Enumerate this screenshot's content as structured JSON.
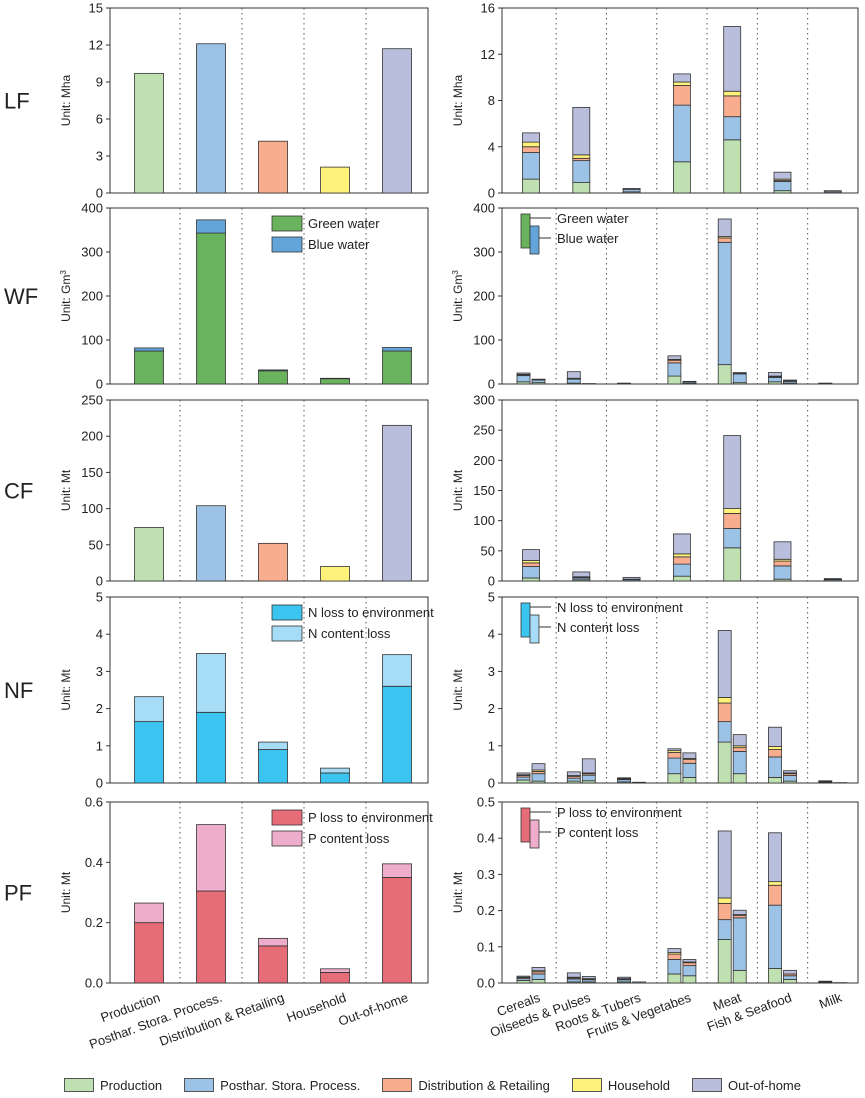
{
  "colors": {
    "stages": [
      "#bfe0b0",
      "#9cc3e6",
      "#f8ad8e",
      "#fff27a",
      "#b8bedb"
    ],
    "green_water": "#6ab35e",
    "blue_water": "#63a5d8",
    "n_env": "#3cc4f0",
    "n_content": "#a6dcf5",
    "p_env": "#e66d78",
    "p_content": "#eeadcb"
  },
  "legend": {
    "items": [
      {
        "label": "Production",
        "color": "#bfe0b0"
      },
      {
        "label": "Posthar. Stora. Process.",
        "color": "#9cc3e6"
      },
      {
        "label": "Distribution & Retailing",
        "color": "#f8ad8e"
      },
      {
        "label": "Household",
        "color": "#fff27a"
      },
      {
        "label": "Out-of-home",
        "color": "#b8bedb"
      }
    ]
  },
  "chart_data": [
    {
      "panel": "LF-stage",
      "row_label": "LF",
      "type": "bar",
      "ylabel": "Unit: Mha",
      "ylim": [
        0,
        15
      ],
      "yticks": [
        0,
        3,
        6,
        9,
        12,
        15
      ],
      "categories": [
        "Production",
        "Posthar. Stora. Process.",
        "Distribution & Retailing",
        "Household",
        "Out-of-home"
      ],
      "values": [
        9.7,
        12.1,
        4.2,
        2.1,
        11.7
      ]
    },
    {
      "panel": "LF-food",
      "type": "bar",
      "ylabel": "Unit: Mha",
      "ylim": [
        0,
        16
      ],
      "yticks": [
        0,
        4,
        8,
        12,
        16
      ],
      "categories": [
        "Cereals",
        "Oilseeds & Pulses",
        "Roots & Tubers",
        "Fruits & Vegetabes",
        "Meat",
        "Fish & Seafood",
        "Milk"
      ],
      "stacks": [
        [
          1.2,
          2.3,
          0.5,
          0.4,
          0.8
        ],
        [
          0.9,
          1.9,
          0.2,
          0.3,
          4.1
        ],
        [
          0.1,
          0.2,
          0.0,
          0.0,
          0.1
        ],
        [
          2.7,
          4.9,
          1.7,
          0.3,
          0.7
        ],
        [
          4.6,
          2.0,
          1.8,
          0.4,
          5.6
        ],
        [
          0.2,
          0.8,
          0.1,
          0.1,
          0.6
        ],
        [
          0.0,
          0.1,
          0.0,
          0.0,
          0.1
        ]
      ]
    },
    {
      "panel": "WF-stage",
      "row_label": "WF",
      "type": "bar",
      "ylabel": "Unit: Gm³",
      "ylim": [
        0,
        400
      ],
      "yticks": [
        0,
        100,
        200,
        300,
        400
      ],
      "categories": [
        "Production",
        "Posthar. Stora. Process.",
        "Distribution & Retailing",
        "Household",
        "Out-of-home"
      ],
      "series": [
        {
          "name": "Green water",
          "values": [
            75,
            343,
            30,
            12,
            75
          ]
        },
        {
          "name": "Blue water",
          "values": [
            7,
            30,
            2,
            1,
            8
          ]
        }
      ]
    },
    {
      "panel": "WF-food",
      "type": "bar",
      "ylabel": "Unit: Gm³",
      "ylim": [
        0,
        400
      ],
      "yticks": [
        0,
        100,
        200,
        300,
        400
      ],
      "categories": [
        "Cereals",
        "Oilseeds & Pulses",
        "Roots & Tubers",
        "Fruits & Vegetabes",
        "Meat",
        "Fish & Seafood",
        "Milk"
      ],
      "legend_labels": [
        "Green water",
        "Blue water"
      ],
      "pairs": [
        [
          [
            5,
            14,
            2,
            1,
            3
          ],
          [
            3,
            6,
            1,
            0,
            1
          ]
        ],
        [
          [
            2,
            9,
            1,
            1,
            15
          ],
          [
            0,
            1,
            0,
            0,
            0
          ]
        ],
        [
          [
            0,
            1,
            0,
            0,
            1
          ],
          [
            0,
            0,
            0,
            0,
            0
          ]
        ],
        [
          [
            18,
            30,
            6,
            2,
            8
          ],
          [
            2,
            3,
            0,
            0,
            1
          ]
        ],
        [
          [
            44,
            278,
            10,
            3,
            40
          ],
          [
            3,
            20,
            1,
            0,
            2
          ]
        ],
        [
          [
            5,
            10,
            2,
            1,
            8
          ],
          [
            2,
            4,
            1,
            0,
            2
          ]
        ],
        [
          [
            0,
            1,
            0,
            0,
            1
          ],
          [
            0,
            0,
            0,
            0,
            0
          ]
        ]
      ]
    },
    {
      "panel": "CF-stage",
      "row_label": "CF",
      "type": "bar",
      "ylabel": "Unit: Mt",
      "ylim": [
        0,
        250
      ],
      "yticks": [
        0,
        50,
        100,
        150,
        200,
        250
      ],
      "categories": [
        "Production",
        "Posthar. Stora. Process.",
        "Distribution & Retailing",
        "Household",
        "Out-of-home"
      ],
      "values": [
        74,
        104,
        52,
        20,
        215
      ]
    },
    {
      "panel": "CF-food",
      "type": "bar",
      "ylabel": "Unit: Mt",
      "ylim": [
        0,
        300
      ],
      "yticks": [
        0,
        50,
        100,
        150,
        200,
        250,
        300
      ],
      "categories": [
        "Cereals",
        "Oilseeds & Pulses",
        "Roots & Tubers",
        "Fruits & Vegetabes",
        "Meat",
        "Fish & Seafood",
        "Milk"
      ],
      "stacks": [
        [
          5,
          19,
          6,
          4,
          18
        ],
        [
          2,
          3,
          1,
          1,
          8
        ],
        [
          0,
          2,
          1,
          0,
          3
        ],
        [
          8,
          20,
          12,
          5,
          33
        ],
        [
          55,
          32,
          25,
          8,
          121
        ],
        [
          3,
          22,
          8,
          3,
          29
        ],
        [
          0,
          2,
          1,
          0,
          1
        ]
      ]
    },
    {
      "panel": "NF-stage",
      "row_label": "NF",
      "type": "bar",
      "ylabel": "Unit: Mt",
      "ylim": [
        0,
        5
      ],
      "yticks": [
        0,
        1,
        2,
        3,
        4,
        5
      ],
      "categories": [
        "Production",
        "Posthar. Stora. Process.",
        "Distribution & Retailing",
        "Household",
        "Out-of-home"
      ],
      "series": [
        {
          "name": "N loss to environment",
          "values": [
            1.65,
            1.9,
            0.9,
            0.27,
            2.6
          ]
        },
        {
          "name": "N content loss",
          "values": [
            0.67,
            1.58,
            0.2,
            0.13,
            0.85
          ]
        }
      ]
    },
    {
      "panel": "NF-food",
      "type": "bar",
      "ylabel": "Unit: Mt",
      "ylim": [
        0,
        5
      ],
      "yticks": [
        0,
        1,
        2,
        3,
        4,
        5
      ],
      "categories": [
        "Cereals",
        "Oilseeds & Pulses",
        "Roots & Tubers",
        "Fruits & Vegetabes",
        "Meat",
        "Fish & Seafood",
        "Milk"
      ],
      "legend_labels": [
        "N loss to environment",
        "N content loss"
      ],
      "pairs": [
        [
          [
            0.08,
            0.08,
            0.04,
            0.02,
            0.05
          ],
          [
            0.05,
            0.2,
            0.06,
            0.04,
            0.17
          ]
        ],
        [
          [
            0.05,
            0.08,
            0.05,
            0.02,
            0.1
          ],
          [
            0.06,
            0.15,
            0.04,
            0.02,
            0.38
          ]
        ],
        [
          [
            0.03,
            0.06,
            0.02,
            0.01,
            0.02
          ],
          [
            0.0,
            0.02,
            0.0,
            0.0,
            0.0
          ]
        ],
        [
          [
            0.25,
            0.42,
            0.15,
            0.05,
            0.05
          ],
          [
            0.15,
            0.38,
            0.1,
            0.03,
            0.15
          ]
        ],
        [
          [
            1.1,
            0.55,
            0.5,
            0.15,
            1.8
          ],
          [
            0.25,
            0.6,
            0.1,
            0.05,
            0.3
          ]
        ],
        [
          [
            0.15,
            0.55,
            0.2,
            0.08,
            0.52
          ],
          [
            0.05,
            0.15,
            0.05,
            0.02,
            0.06
          ]
        ],
        [
          [
            0.02,
            0.02,
            0.01,
            0.0,
            0.01
          ],
          [
            0.0,
            0.01,
            0.0,
            0.0,
            0.0
          ]
        ]
      ]
    },
    {
      "panel": "PF-stage",
      "row_label": "PF",
      "type": "bar",
      "ylabel": "Unit: Mt",
      "ylim": [
        0,
        0.6
      ],
      "yticks": [
        0.0,
        0.2,
        0.4,
        0.6
      ],
      "categories": [
        "Production",
        "Posthar. Stora. Process.",
        "Distribution & Retailing",
        "Household",
        "Out-of-home"
      ],
      "series": [
        {
          "name": "P loss to environment",
          "values": [
            0.2,
            0.305,
            0.123,
            0.035,
            0.35
          ]
        },
        {
          "name": "P content loss",
          "values": [
            0.065,
            0.22,
            0.025,
            0.012,
            0.045
          ]
        }
      ]
    },
    {
      "panel": "PF-food",
      "type": "bar",
      "ylabel": "Unit: Mt",
      "ylim": [
        0,
        0.5
      ],
      "yticks": [
        0.0,
        0.1,
        0.2,
        0.3,
        0.4,
        0.5
      ],
      "categories": [
        "Cereals",
        "Oilseeds & Pulses",
        "Roots & Tubers",
        "Fruits & Vegetabes",
        "Meat",
        "Fish & Seafood",
        "Milk"
      ],
      "legend_labels": [
        "P loss to environment",
        "P content loss"
      ],
      "pairs": [
        [
          [
            0.007,
            0.005,
            0.003,
            0.001,
            0.003
          ],
          [
            0.01,
            0.015,
            0.006,
            0.003,
            0.009
          ]
        ],
        [
          [
            0.003,
            0.008,
            0.003,
            0.002,
            0.012
          ],
          [
            0.003,
            0.006,
            0.002,
            0.001,
            0.006
          ]
        ],
        [
          [
            0.003,
            0.006,
            0.002,
            0.001,
            0.004
          ],
          [
            0.0,
            0.003,
            0.0,
            0.0,
            0.0
          ]
        ],
        [
          [
            0.025,
            0.04,
            0.015,
            0.004,
            0.011
          ],
          [
            0.02,
            0.028,
            0.008,
            0.002,
            0.007
          ]
        ],
        [
          [
            0.12,
            0.055,
            0.045,
            0.015,
            0.185
          ],
          [
            0.035,
            0.145,
            0.007,
            0.002,
            0.012
          ]
        ],
        [
          [
            0.04,
            0.175,
            0.055,
            0.01,
            0.135
          ],
          [
            0.01,
            0.01,
            0.005,
            0.0,
            0.01
          ]
        ],
        [
          [
            0.002,
            0.001,
            0.001,
            0.0,
            0.001
          ],
          [
            0.0,
            0.001,
            0.0,
            0.0,
            0.0
          ]
        ]
      ]
    }
  ]
}
